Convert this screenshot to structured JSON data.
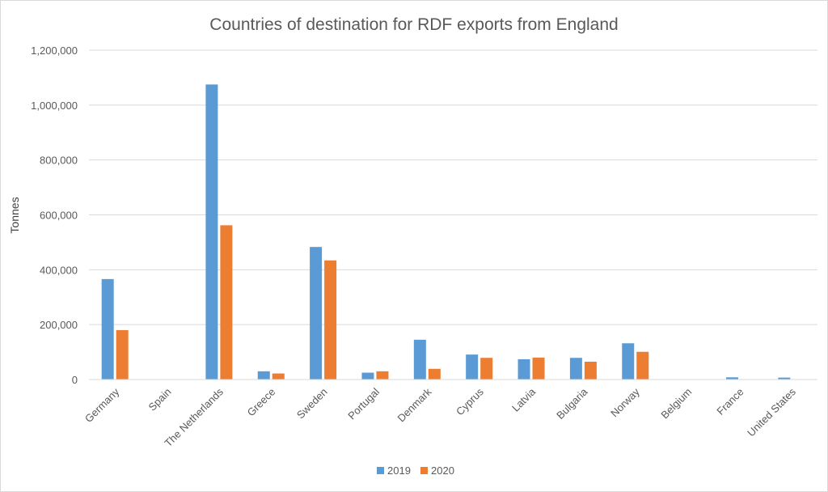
{
  "chart_data": {
    "type": "bar",
    "title": "Countries of destination for RDF exports from England",
    "ylabel": "Tonnes",
    "xlabel": "",
    "ylim": [
      0,
      1200000
    ],
    "yticks": [
      "0",
      "200,000",
      "400,000",
      "600,000",
      "800,000",
      "1,000,000",
      "1,200,000"
    ],
    "ytick_values": [
      0,
      200000,
      400000,
      600000,
      800000,
      1000000,
      1200000
    ],
    "grid": true,
    "legend_position": "bottom",
    "categories": [
      "Germany",
      "Spain",
      "The Netherlands",
      "Greece",
      "Sweden",
      "Portugal",
      "Denmark",
      "Cyprus",
      "Latvia",
      "Bulgaria",
      "Norway",
      "Belgium",
      "France",
      "United States"
    ],
    "series": [
      {
        "name": "2019",
        "color": "#5b9bd5",
        "values": [
          366000,
          0,
          1075000,
          30000,
          483000,
          25000,
          145000,
          91000,
          74000,
          79000,
          132000,
          0,
          8000,
          7000
        ]
      },
      {
        "name": "2020",
        "color": "#ed7d31",
        "values": [
          180000,
          0,
          562000,
          22000,
          434000,
          30000,
          39000,
          79000,
          80000,
          65000,
          101000,
          0,
          0,
          0
        ]
      }
    ]
  }
}
